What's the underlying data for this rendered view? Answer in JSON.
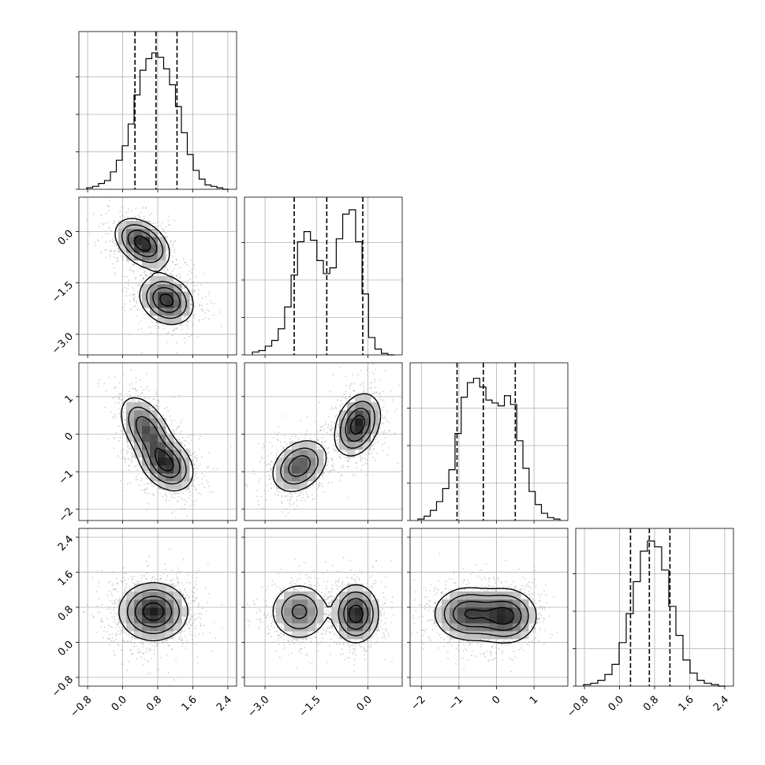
{
  "chart_data": {
    "type": "corner",
    "parameters": 4,
    "grid": true,
    "quantile_lines": "dashed",
    "axes": [
      {
        "range": [
          -1.0,
          2.6
        ],
        "ticks": [
          -0.8,
          0.0,
          0.8,
          1.6,
          2.4
        ],
        "tick_labels": [
          "−0.8",
          "0.0",
          "0.8",
          "1.6",
          "2.4"
        ],
        "quantiles": [
          0.28,
          0.76,
          1.24
        ],
        "peaks": [
          {
            "mu": 0.55,
            "sigma": 0.35,
            "w": 0.45
          },
          {
            "mu": 0.95,
            "sigma": 0.35,
            "w": 0.55
          }
        ],
        "hist": [
          0.01,
          0.02,
          0.04,
          0.06,
          0.12,
          0.2,
          0.3,
          0.45,
          0.65,
          0.82,
          0.9,
          0.94,
          0.91,
          0.83,
          0.72,
          0.57,
          0.39,
          0.24,
          0.13,
          0.07,
          0.03,
          0.02,
          0.01,
          0.0
        ]
      },
      {
        "range": [
          -3.6,
          1.0
        ],
        "ticks": [
          -3.0,
          -1.5,
          0.0
        ],
        "tick_labels": [
          "−3.0",
          "−1.5",
          "0.0"
        ],
        "quantiles": [
          -2.15,
          -1.2,
          -0.15
        ],
        "peaks": [
          {
            "mu": -2.0,
            "sigma": 0.45,
            "w": 0.45
          },
          {
            "mu": -0.3,
            "sigma": 0.35,
            "w": 0.55
          }
        ],
        "hist": [
          0.02,
          0.03,
          0.06,
          0.1,
          0.18,
          0.33,
          0.55,
          0.78,
          0.85,
          0.79,
          0.65,
          0.56,
          0.6,
          0.8,
          0.97,
          1.0,
          0.78,
          0.42,
          0.12,
          0.04,
          0.01,
          0.0
        ]
      },
      {
        "range": [
          -2.3,
          1.9
        ],
        "ticks": [
          -2,
          -1,
          0,
          1
        ],
        "tick_labels": [
          "−2",
          "−1",
          "0",
          "1"
        ],
        "quantiles": [
          -1.05,
          -0.35,
          0.5
        ],
        "peaks": [
          {
            "mu": -0.75,
            "sigma": 0.45,
            "w": 0.5
          },
          {
            "mu": 0.25,
            "sigma": 0.4,
            "w": 0.5
          }
        ],
        "hist": [
          0.01,
          0.03,
          0.07,
          0.13,
          0.22,
          0.35,
          0.6,
          0.85,
          0.95,
          0.98,
          0.92,
          0.83,
          0.81,
          0.79,
          0.86,
          0.8,
          0.55,
          0.36,
          0.2,
          0.11,
          0.05,
          0.02,
          0.01
        ]
      },
      {
        "range": [
          -1.0,
          2.6
        ],
        "ticks": [
          -0.8,
          0.0,
          0.8,
          1.6,
          2.4
        ],
        "tick_labels": [
          "−0.8",
          "0.0",
          "0.8",
          "1.6",
          "2.4"
        ],
        "quantiles": [
          0.25,
          0.68,
          1.15
        ],
        "peaks": [
          {
            "mu": 0.68,
            "sigma": 0.35,
            "w": 1.0
          }
        ],
        "hist": [
          0.01,
          0.02,
          0.04,
          0.08,
          0.15,
          0.3,
          0.5,
          0.72,
          0.93,
          1.0,
          0.96,
          0.8,
          0.55,
          0.35,
          0.18,
          0.09,
          0.04,
          0.02,
          0.01,
          0.0
        ]
      }
    ],
    "joint": [
      {
        "row": 1,
        "col": 0,
        "modes": [
          {
            "mx": 0.45,
            "my": -0.35,
            "sx": 0.3,
            "sy": 0.35,
            "rho": -0.4,
            "w": 0.5
          },
          {
            "mx": 1.0,
            "my": -2.0,
            "sx": 0.3,
            "sy": 0.35,
            "rho": -0.2,
            "w": 0.5
          }
        ]
      },
      {
        "row": 2,
        "col": 0,
        "modes": [
          {
            "mx": 0.55,
            "my": 0.1,
            "sx": 0.3,
            "sy": 0.45,
            "rho": -0.5,
            "w": 0.5
          },
          {
            "mx": 1.0,
            "my": -0.8,
            "sx": 0.3,
            "sy": 0.35,
            "rho": -0.3,
            "w": 0.5
          }
        ]
      },
      {
        "row": 3,
        "col": 0,
        "modes": [
          {
            "mx": 0.7,
            "my": 0.7,
            "sx": 0.38,
            "sy": 0.32,
            "rho": 0.0,
            "w": 1.0
          }
        ]
      },
      {
        "row": 2,
        "col": 1,
        "modes": [
          {
            "mx": -2.0,
            "my": -0.85,
            "sx": 0.4,
            "sy": 0.35,
            "rho": 0.3,
            "w": 0.45
          },
          {
            "mx": -0.3,
            "my": 0.25,
            "sx": 0.32,
            "sy": 0.4,
            "rho": 0.3,
            "w": 0.55
          }
        ]
      },
      {
        "row": 3,
        "col": 1,
        "modes": [
          {
            "mx": -2.0,
            "my": 0.7,
            "sx": 0.42,
            "sy": 0.32,
            "rho": 0.0,
            "w": 0.45
          },
          {
            "mx": -0.35,
            "my": 0.65,
            "sx": 0.32,
            "sy": 0.32,
            "rho": 0.0,
            "w": 0.55
          }
        ]
      },
      {
        "row": 3,
        "col": 2,
        "modes": [
          {
            "mx": -0.75,
            "my": 0.65,
            "sx": 0.45,
            "sy": 0.3,
            "rho": 0.0,
            "w": 0.5
          },
          {
            "mx": 0.25,
            "my": 0.6,
            "sx": 0.4,
            "sy": 0.3,
            "rho": 0.0,
            "w": 0.5
          }
        ]
      }
    ]
  }
}
